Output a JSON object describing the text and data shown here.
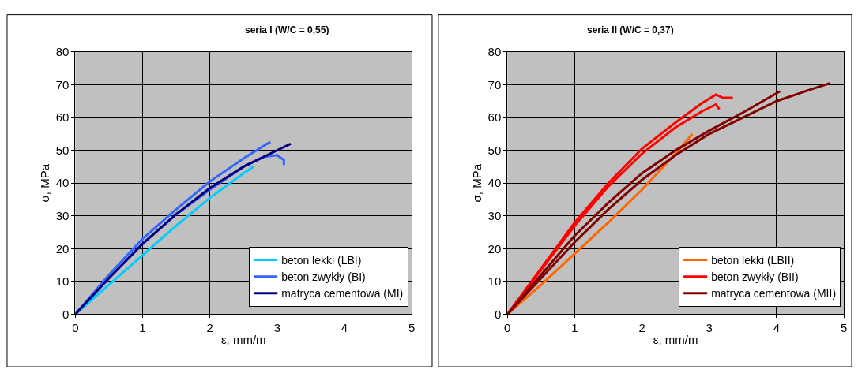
{
  "chart_data": [
    {
      "type": "line",
      "title": "seria I (W/C = 0,55)",
      "xlabel": "ε, mm/m",
      "ylabel": "σ, MPa",
      "xlim": [
        0,
        5
      ],
      "xticks": [
        0,
        1,
        2,
        3,
        4,
        5
      ],
      "ylim": [
        0,
        80
      ],
      "yticks": [
        0,
        10,
        20,
        30,
        40,
        50,
        60,
        70,
        80
      ],
      "grid": true,
      "legend": "bottom right",
      "marker": "none",
      "line_style": "solid",
      "series": [
        {
          "name": "beton lekki (LBI)",
          "color": "#00ccff",
          "x": [
            0,
            0.5,
            1,
            1.5,
            2,
            2.5,
            2.65
          ],
          "values": [
            0,
            9,
            18,
            27,
            35.5,
            43,
            45
          ]
        },
        {
          "name": "beton zwykły (BI)",
          "color": "#3366ff",
          "x": [
            0,
            0.5,
            1,
            1.5,
            2,
            2.5,
            2.85,
            2.9
          ],
          "values": [
            0,
            12,
            23,
            32,
            40.5,
            47.5,
            52,
            52.5
          ]
        },
        {
          "color": "#3366ff",
          "x": [
            0,
            0.5,
            1,
            1.5,
            2,
            2.5,
            2.8,
            3.0,
            3.1,
            3.1
          ],
          "values": [
            0,
            11,
            21.5,
            30.5,
            38,
            45,
            48,
            48.5,
            47,
            45.5
          ]
        },
        {
          "name": "matryca cementowa (MI)",
          "color": "#000080",
          "x": [
            0,
            0.5,
            1,
            1.5,
            2,
            2.5,
            2.9,
            3.2
          ],
          "values": [
            0,
            11,
            21.5,
            30.5,
            38.5,
            45,
            49,
            52
          ]
        }
      ]
    },
    {
      "type": "line",
      "title": "seria II (W/C = 0,37)",
      "xlabel": "ε, mm/m",
      "ylabel": "σ, MPa",
      "xlim": [
        0,
        5
      ],
      "xticks": [
        0,
        1,
        2,
        3,
        4,
        5
      ],
      "ylim": [
        0,
        80
      ],
      "yticks": [
        0,
        10,
        20,
        30,
        40,
        50,
        60,
        70,
        80
      ],
      "grid": true,
      "legend": "bottom right",
      "marker": "none",
      "line_style": "solid",
      "series": [
        {
          "name": "beton lekki (LBII)",
          "color": "#ff6600",
          "x": [
            0,
            0.5,
            1,
            1.5,
            2,
            2.5,
            2.75
          ],
          "values": [
            0,
            9,
            18.5,
            28,
            38,
            49,
            55
          ]
        },
        {
          "name": "beton zwykły (BII)",
          "color": "#ff0000",
          "x": [
            0,
            0.5,
            1,
            1.5,
            2,
            2.5,
            2.9,
            3.1,
            3.2,
            3.35
          ],
          "values": [
            0,
            14,
            28,
            40,
            50.5,
            58.5,
            64.5,
            67,
            66,
            66
          ]
        },
        {
          "color": "#ff0000",
          "x": [
            0,
            0.5,
            1,
            1.5,
            2,
            2.5,
            2.9,
            3.1,
            3.15
          ],
          "values": [
            0,
            13.5,
            27,
            39,
            49,
            57,
            62,
            64,
            62.5
          ]
        },
        {
          "name": "matryca cementowa (MII)",
          "color": "#800000",
          "x": [
            0,
            0.5,
            1,
            1.5,
            2,
            2.5,
            3,
            3.5,
            4.05
          ],
          "values": [
            0,
            12,
            24,
            34,
            43,
            50,
            56,
            61.5,
            68
          ]
        },
        {
          "color": "#800000",
          "x": [
            0,
            0.5,
            1,
            1.5,
            2,
            2.5,
            3,
            3.5,
            4,
            4.5,
            4.8
          ],
          "values": [
            0,
            11,
            22,
            32,
            41,
            48.5,
            55,
            60,
            65,
            68.5,
            70.5
          ]
        }
      ]
    }
  ]
}
